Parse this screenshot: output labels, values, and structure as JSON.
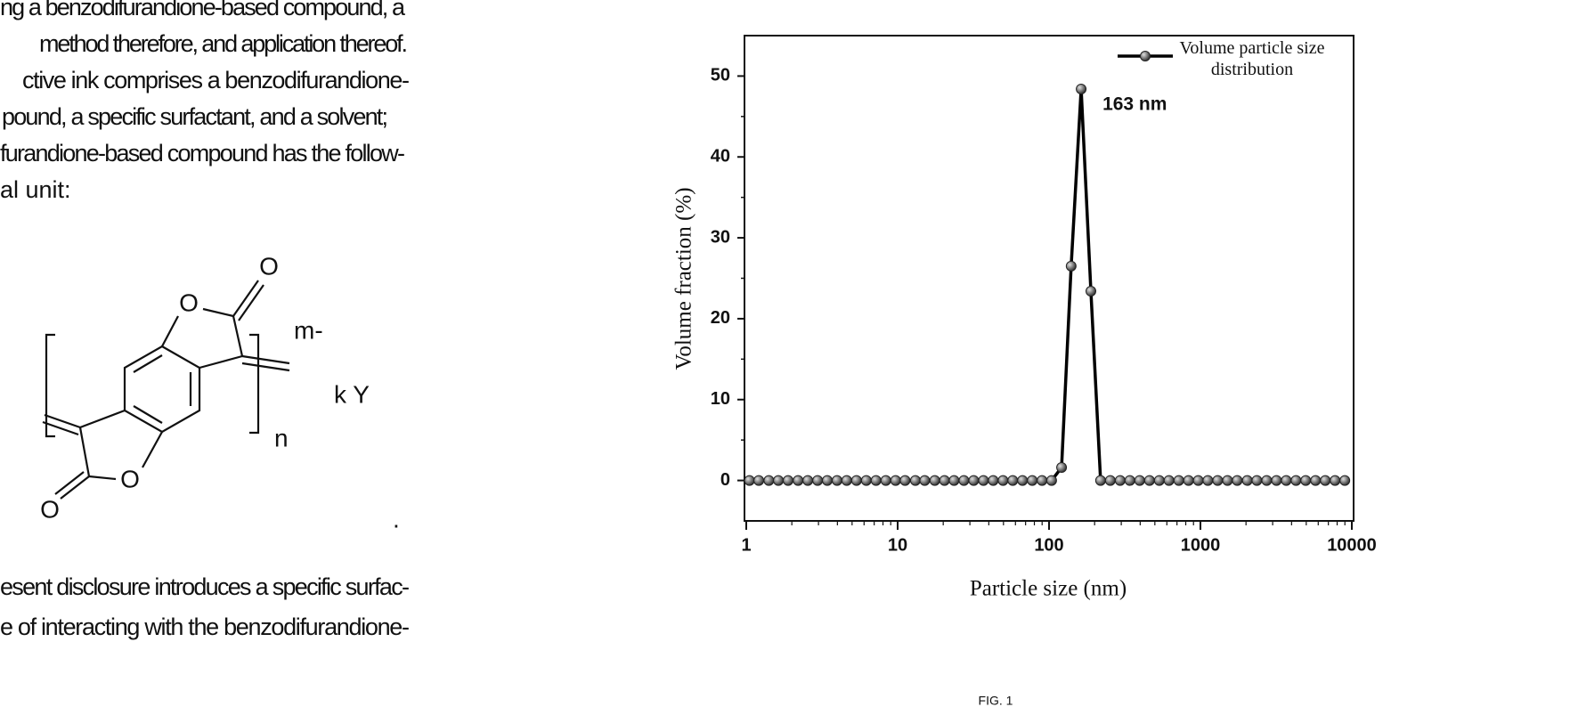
{
  "text": {
    "top_lines": [
      "ng a benzodifurandione-based compound, a",
      "method therefore, and application thereof.",
      "ctive ink comprises a benzodifurandione-",
      "pound, a specific surfactant, and a solvent;",
      "furandione-based compound has the follow-",
      "al unit:"
    ],
    "structure_labels": [
      "O",
      "O",
      "m-",
      "k Y",
      "n",
      "O",
      "O",
      "."
    ],
    "bottom_lines": [
      "esent disclosure introduces a specific surfac-",
      "e of interacting with the benzodifurandione-"
    ]
  },
  "chart_data": {
    "type": "line",
    "xlabel": "Particle size (nm)",
    "ylabel": "Volume fraction (%)",
    "caption": "FIG. 1",
    "annotation": "163 nm",
    "xscale": "log",
    "xlim": [
      1,
      10000
    ],
    "xticks": [
      1,
      10,
      100,
      1000,
      10000
    ],
    "ylim": [
      -5,
      55
    ],
    "yticks": [
      0,
      10,
      20,
      30,
      40,
      50
    ],
    "legend": "upper right",
    "x": [
      1.05,
      1.21,
      1.41,
      1.63,
      1.89,
      2.2,
      2.55,
      2.96,
      3.43,
      3.98,
      4.61,
      5.35,
      6.21,
      7.2,
      8.36,
      9.7,
      11.2,
      13.1,
      15.1,
      17.6,
      20.4,
      23.6,
      27.4,
      31.8,
      36.9,
      42.8,
      49.7,
      57.6,
      66.8,
      77.5,
      89.9,
      104,
      121,
      140,
      163,
      189,
      219,
      254,
      295,
      342,
      397,
      461,
      535,
      620,
      720,
      835,
      968,
      1120,
      1300,
      1510,
      1750,
      2040,
      2360,
      2740,
      3180,
      3690,
      4280,
      4960,
      5760,
      6680,
      7750,
      8990
    ],
    "series": [
      {
        "name": "Volume particle size distribution",
        "color": "#000000",
        "values": [
          0,
          0,
          0,
          0,
          0,
          0,
          0,
          0,
          0,
          0,
          0,
          0,
          0,
          0,
          0,
          0,
          0,
          0,
          0,
          0,
          0,
          0,
          0,
          0,
          0,
          0,
          0,
          0,
          0,
          0,
          0,
          0,
          1.6,
          26.5,
          48.4,
          23.4,
          0,
          0,
          0,
          0,
          0,
          0,
          0,
          0,
          0,
          0,
          0,
          0,
          0,
          0,
          0,
          0,
          0,
          0,
          0,
          0,
          0,
          0,
          0,
          0,
          0,
          0
        ]
      }
    ]
  }
}
